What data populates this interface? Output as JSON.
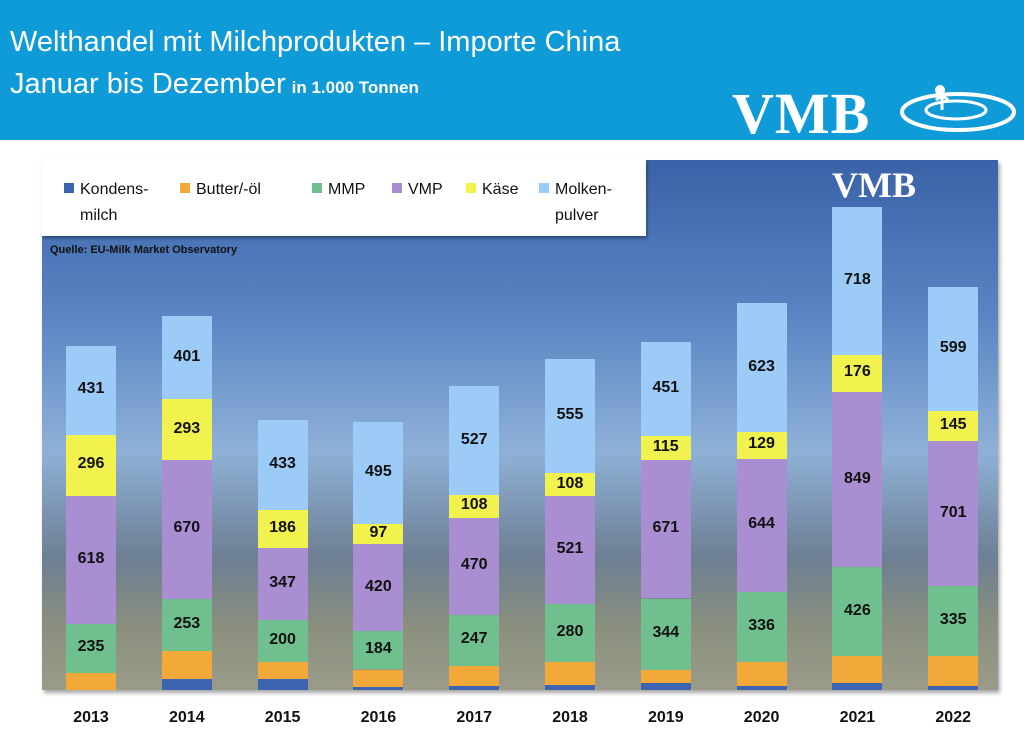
{
  "header": {
    "title_line1": "Welthandel mit Milchprodukten – Importe China",
    "title_line2": "Januar bis Dezember",
    "unit": "in 1.000 Tonnen",
    "logo": "VMB",
    "background_color": "#0e9bd8"
  },
  "chart_data": {
    "type": "bar",
    "stacked": true,
    "title": "Welthandel mit Milchprodukten – Importe China, Januar bis Dezember",
    "unit": "in 1.000 Tonnen",
    "source": "Quelle: EU-Milk Market Observatory",
    "legend_position": "top-left",
    "grid": false,
    "categories": [
      "2013",
      "2014",
      "2015",
      "2016",
      "2017",
      "2018",
      "2019",
      "2020",
      "2021",
      "2022"
    ],
    "series": [
      {
        "name": "Kondens-milch",
        "legend_line1": "Kondens-",
        "legend_line2": "milch",
        "color": "#3c64b1",
        "labeled": false,
        "values": [
          0,
          53,
          53,
          15,
          19,
          24,
          32,
          19,
          32,
          19
        ]
      },
      {
        "name": "Butter/-öl",
        "legend_line1": "Butter/-öl",
        "legend_line2": "",
        "color": "#f3a83a",
        "labeled": false,
        "values": [
          84,
          135,
          84,
          84,
          97,
          113,
          66,
          118,
          134,
          147
        ]
      },
      {
        "name": "MMP",
        "legend_line1": "MMP",
        "legend_line2": "",
        "color": "#70c08f",
        "labeled": true,
        "values": [
          235,
          253,
          200,
          184,
          247,
          280,
          344,
          336,
          426,
          335
        ]
      },
      {
        "name": "VMP",
        "legend_line1": "VMP",
        "legend_line2": "",
        "color": "#a98fd2",
        "labeled": true,
        "values": [
          618,
          670,
          347,
          420,
          470,
          521,
          671,
          644,
          849,
          701
        ]
      },
      {
        "name": "Käse",
        "legend_line1": "Käse",
        "legend_line2": "",
        "color": "#f2f24e",
        "labeled": true,
        "values": [
          296,
          293,
          186,
          97,
          108,
          108,
          115,
          129,
          176,
          145
        ]
      },
      {
        "name": "Molken-pulver",
        "legend_line1": "Molken-",
        "legend_line2": "pulver",
        "color": "#9ccbf8",
        "labeled": true,
        "values": [
          431,
          401,
          433,
          495,
          527,
          555,
          451,
          623,
          718,
          599
        ]
      }
    ]
  }
}
